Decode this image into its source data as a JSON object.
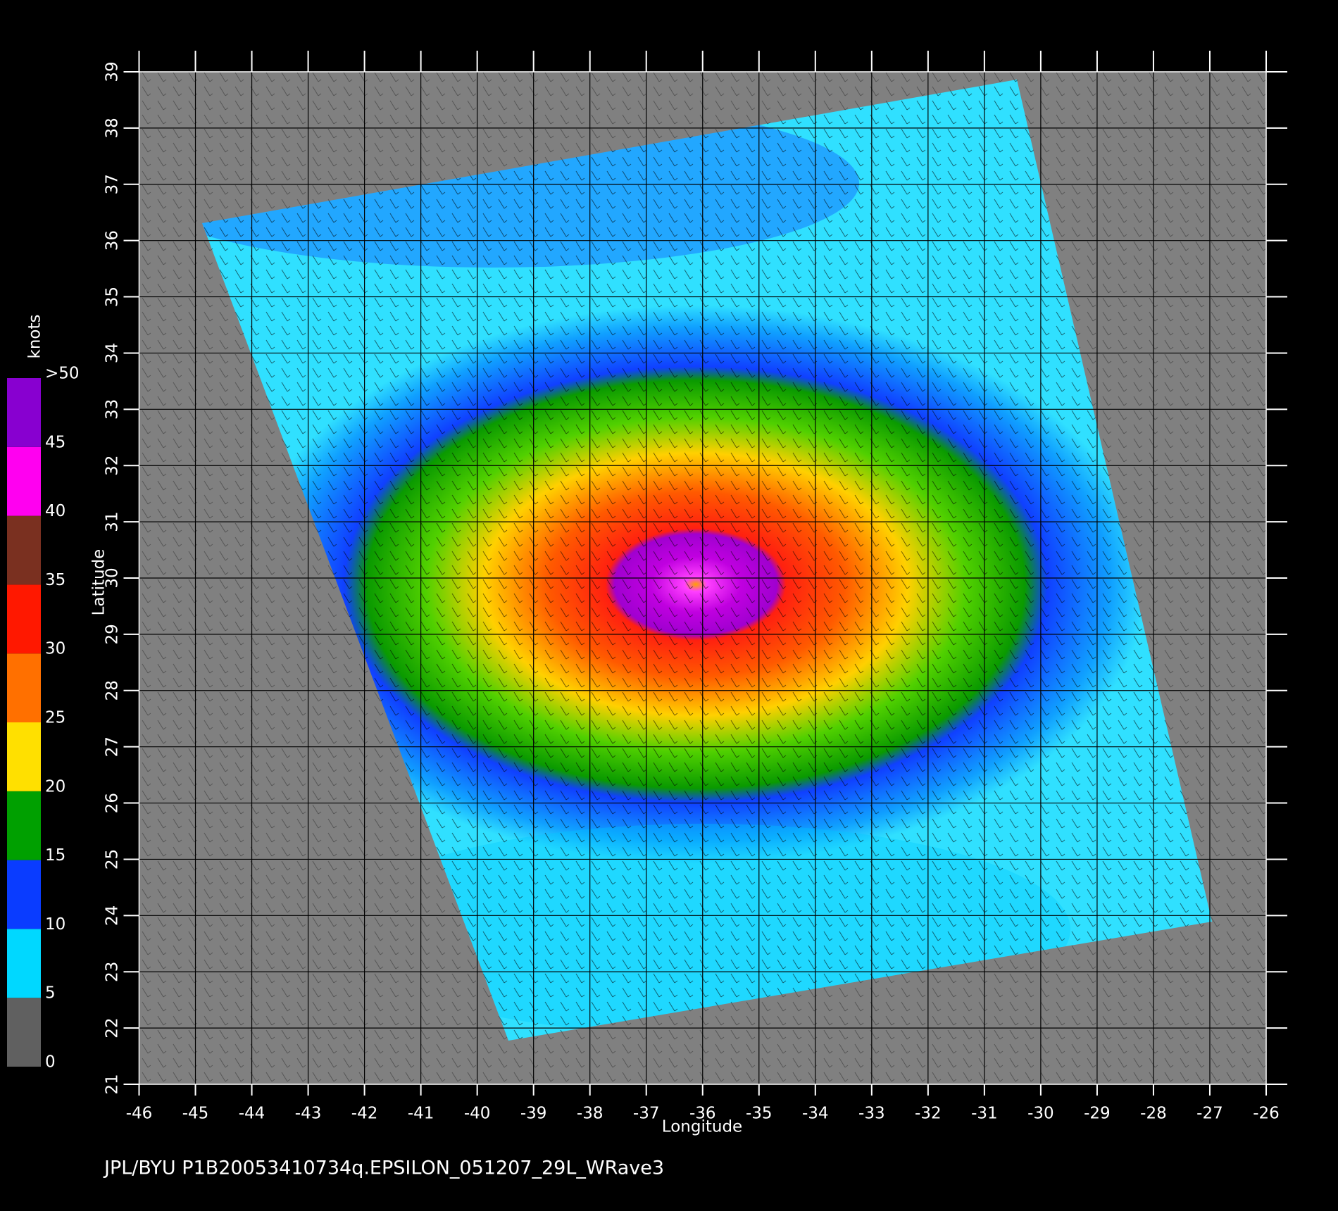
{
  "map": {
    "xlim": [
      -46,
      -26
    ],
    "ylim": [
      21,
      39
    ],
    "xticks": [
      -46,
      -45,
      -44,
      -43,
      -42,
      -41,
      -40,
      -39,
      -38,
      -37,
      -36,
      -35,
      -34,
      -33,
      -32,
      -31,
      -30,
      -29,
      -28,
      -27,
      -26
    ],
    "yticks": [
      21,
      22,
      23,
      24,
      25,
      26,
      27,
      28,
      29,
      30,
      31,
      32,
      33,
      34,
      35,
      36,
      37,
      38,
      39
    ],
    "xlabel": "Longitude",
    "ylabel": "Latitude",
    "grid": true
  },
  "colorbar": {
    "label": "knots",
    "ticks": [
      0,
      5,
      10,
      15,
      20,
      25,
      30,
      35,
      40,
      45,
      {
        "value": 50,
        "label": ">50"
      }
    ],
    "colors": [
      "#606060",
      "#00d8ff",
      "#0a3cff",
      "#00a000",
      "#ffe000",
      "#ff7000",
      "#ff1800",
      "#7a3020",
      "#ff00f0",
      "#8800d0"
    ]
  },
  "footer": "JPL/BYU  P1B20053410734q.EPSILON_051207_29L_WRave3"
}
